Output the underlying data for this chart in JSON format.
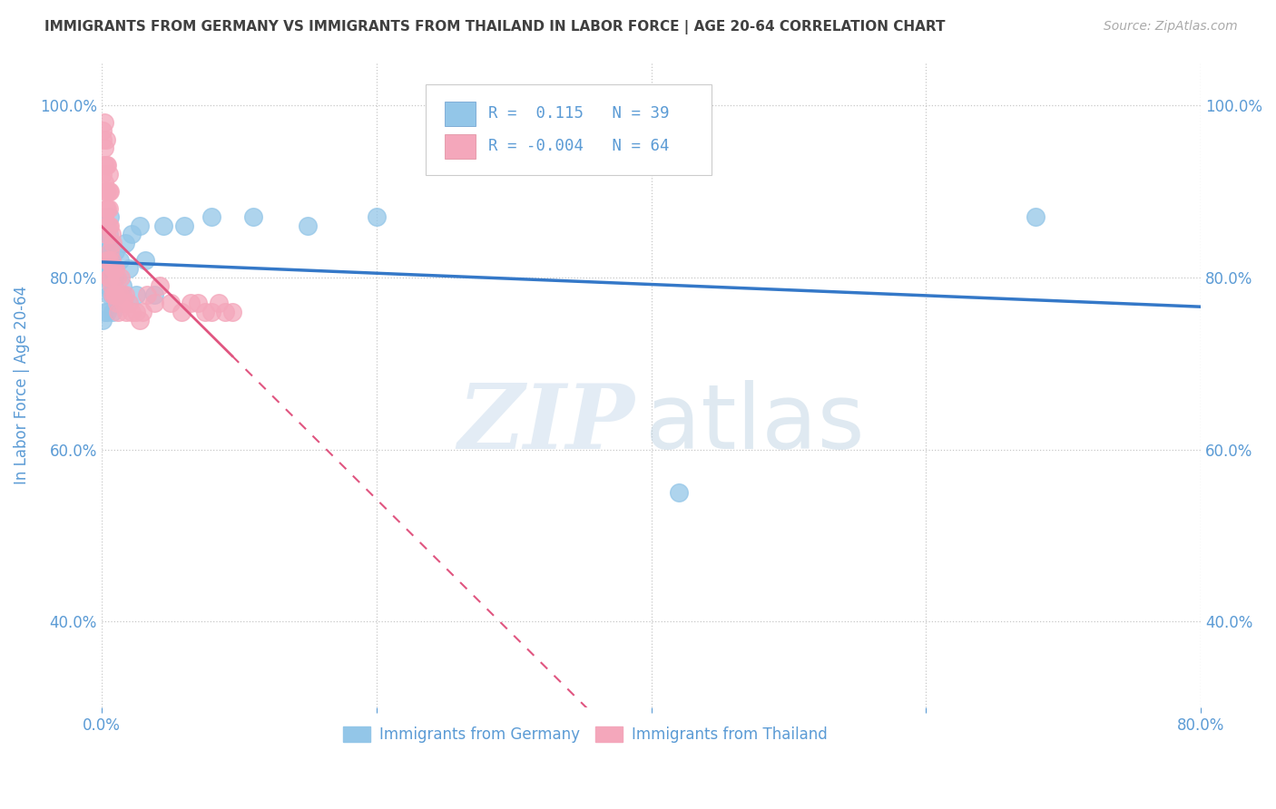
{
  "title": "IMMIGRANTS FROM GERMANY VS IMMIGRANTS FROM THAILAND IN LABOR FORCE | AGE 20-64 CORRELATION CHART",
  "source": "Source: ZipAtlas.com",
  "ylabel": "In Labor Force | Age 20-64",
  "r_germany": 0.115,
  "n_germany": 39,
  "r_thailand": -0.004,
  "n_thailand": 64,
  "legend_labels": [
    "Immigrants from Germany",
    "Immigrants from Thailand"
  ],
  "color_germany": "#93c6e8",
  "color_thailand": "#f4a7bb",
  "color_line_germany": "#3478c8",
  "color_line_thailand": "#e05580",
  "xlim": [
    0.0,
    0.8
  ],
  "ylim": [
    0.3,
    1.05
  ],
  "yticks": [
    0.4,
    0.6,
    0.8,
    1.0
  ],
  "ytick_labels": [
    "40.0%",
    "60.0%",
    "80.0%",
    "100.0%"
  ],
  "background_color": "#ffffff",
  "grid_color": "#c8c8c8",
  "label_color": "#5b9bd5",
  "title_color": "#404040",
  "germany_x": [
    0.001,
    0.001,
    0.002,
    0.002,
    0.002,
    0.003,
    0.003,
    0.003,
    0.004,
    0.004,
    0.004,
    0.005,
    0.005,
    0.005,
    0.006,
    0.006,
    0.007,
    0.007,
    0.008,
    0.009,
    0.01,
    0.011,
    0.013,
    0.015,
    0.017,
    0.02,
    0.022,
    0.025,
    0.028,
    0.032,
    0.038,
    0.045,
    0.06,
    0.08,
    0.11,
    0.15,
    0.2,
    0.42,
    0.68
  ],
  "germany_y": [
    0.75,
    0.81,
    0.76,
    0.82,
    0.87,
    0.83,
    0.79,
    0.86,
    0.8,
    0.76,
    0.84,
    0.78,
    0.83,
    0.85,
    0.81,
    0.87,
    0.78,
    0.82,
    0.76,
    0.8,
    0.83,
    0.78,
    0.82,
    0.79,
    0.84,
    0.81,
    0.85,
    0.78,
    0.86,
    0.82,
    0.78,
    0.86,
    0.86,
    0.87,
    0.87,
    0.86,
    0.87,
    0.55,
    0.87
  ],
  "thailand_x": [
    0.001,
    0.001,
    0.001,
    0.002,
    0.002,
    0.002,
    0.002,
    0.002,
    0.003,
    0.003,
    0.003,
    0.003,
    0.003,
    0.004,
    0.004,
    0.004,
    0.004,
    0.004,
    0.005,
    0.005,
    0.005,
    0.005,
    0.005,
    0.005,
    0.006,
    0.006,
    0.006,
    0.006,
    0.007,
    0.007,
    0.007,
    0.008,
    0.008,
    0.008,
    0.009,
    0.009,
    0.01,
    0.01,
    0.011,
    0.011,
    0.012,
    0.013,
    0.014,
    0.015,
    0.016,
    0.017,
    0.018,
    0.02,
    0.022,
    0.025,
    0.028,
    0.03,
    0.033,
    0.038,
    0.042,
    0.05,
    0.058,
    0.065,
    0.07,
    0.075,
    0.08,
    0.085,
    0.09,
    0.095
  ],
  "thailand_y": [
    0.92,
    0.96,
    0.97,
    0.87,
    0.91,
    0.93,
    0.95,
    0.98,
    0.85,
    0.88,
    0.9,
    0.93,
    0.96,
    0.82,
    0.86,
    0.88,
    0.9,
    0.93,
    0.8,
    0.82,
    0.86,
    0.88,
    0.9,
    0.92,
    0.8,
    0.83,
    0.86,
    0.9,
    0.79,
    0.82,
    0.85,
    0.78,
    0.81,
    0.84,
    0.78,
    0.81,
    0.78,
    0.81,
    0.77,
    0.8,
    0.76,
    0.78,
    0.8,
    0.78,
    0.77,
    0.78,
    0.76,
    0.77,
    0.76,
    0.76,
    0.75,
    0.76,
    0.78,
    0.77,
    0.79,
    0.77,
    0.76,
    0.77,
    0.77,
    0.76,
    0.76,
    0.77,
    0.76,
    0.76
  ],
  "watermark_zip": "ZIP",
  "watermark_atlas": "atlas"
}
